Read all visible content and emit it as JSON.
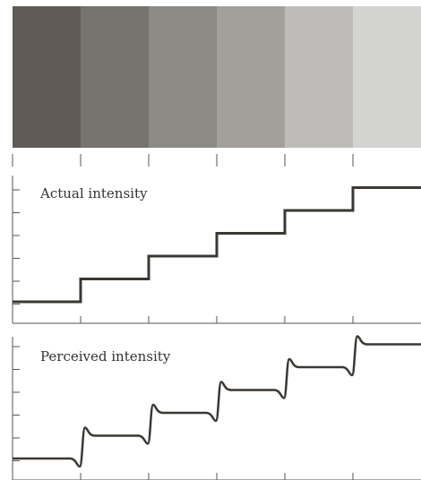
{
  "bands": [
    {
      "color": "#615b55"
    },
    {
      "color": "#77736d"
    },
    {
      "color": "#8c8a85"
    },
    {
      "color": "#a39f9b"
    },
    {
      "color": "#bdbcb9"
    },
    {
      "color": "#d3d3d1"
    }
  ],
  "panels": {
    "actual": {
      "label": "Actual intensity",
      "levels": [
        1,
        2,
        3,
        4,
        5,
        6
      ]
    },
    "perceived": {
      "label": "Perceived intensity",
      "levels": [
        1,
        2,
        3,
        4,
        5,
        6
      ],
      "overshoot": true
    }
  },
  "line_color": "#3b3732",
  "axis_color": "#555555"
}
